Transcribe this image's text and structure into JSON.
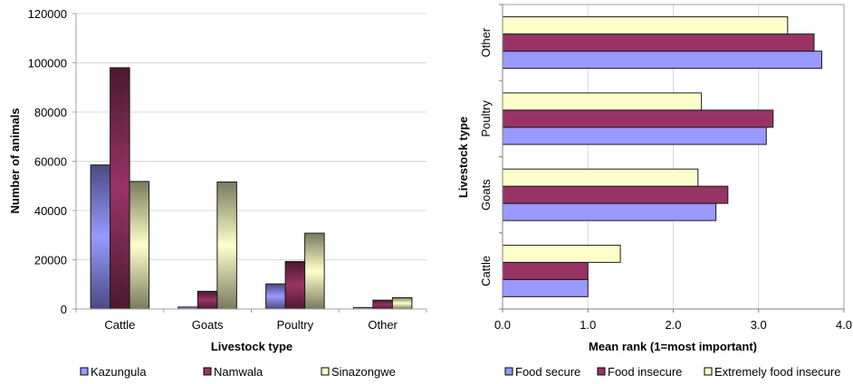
{
  "chart_data": [
    {
      "type": "bar",
      "orientation": "vertical",
      "title": "",
      "xlabel": "Livestock type",
      "ylabel": "Number of animals",
      "categories": [
        "Cattle",
        "Goats",
        "Poultry",
        "Other"
      ],
      "ylim": [
        0,
        120000
      ],
      "yticks": [
        "0",
        "20000",
        "40000",
        "60000",
        "80000",
        "100000",
        "120000"
      ],
      "ytick_values": [
        0,
        20000,
        40000,
        60000,
        80000,
        100000,
        120000
      ],
      "grid": true,
      "legend_position": "bottom",
      "series": [
        {
          "name": "Kazungula",
          "color": "#9999ff",
          "dark": "#4a4a80",
          "values": [
            58500,
            800,
            10200,
            600
          ]
        },
        {
          "name": "Namwala",
          "color": "#993366",
          "dark": "#4a1a30",
          "values": [
            98000,
            7200,
            19300,
            3600
          ]
        },
        {
          "name": "Sinazongwe",
          "color": "#ffffcc",
          "dark": "#7a7a5e",
          "values": [
            51800,
            51600,
            30800,
            4600
          ]
        }
      ]
    },
    {
      "type": "bar",
      "orientation": "horizontal",
      "title": "",
      "xlabel": "Mean rank (1=most important)",
      "ylabel": "Livestock type",
      "categories": [
        "Cattle",
        "Goats",
        "Poultry",
        "Other"
      ],
      "xlim": [
        0,
        4
      ],
      "xticks": [
        "0.0",
        "1.0",
        "2.0",
        "3.0",
        "4.0"
      ],
      "xtick_values": [
        0,
        1,
        2,
        3,
        4
      ],
      "grid": true,
      "legend_position": "bottom",
      "series": [
        {
          "name": "Food secure",
          "color": "#9999ff",
          "values": [
            1.0,
            2.5,
            3.09,
            3.74
          ]
        },
        {
          "name": "Food insecure",
          "color": "#993366",
          "values": [
            1.0,
            2.64,
            3.17,
            3.65
          ]
        },
        {
          "name": "Extremely food insecure",
          "color": "#ffffcc",
          "values": [
            1.38,
            2.29,
            2.33,
            3.34
          ]
        }
      ]
    }
  ]
}
